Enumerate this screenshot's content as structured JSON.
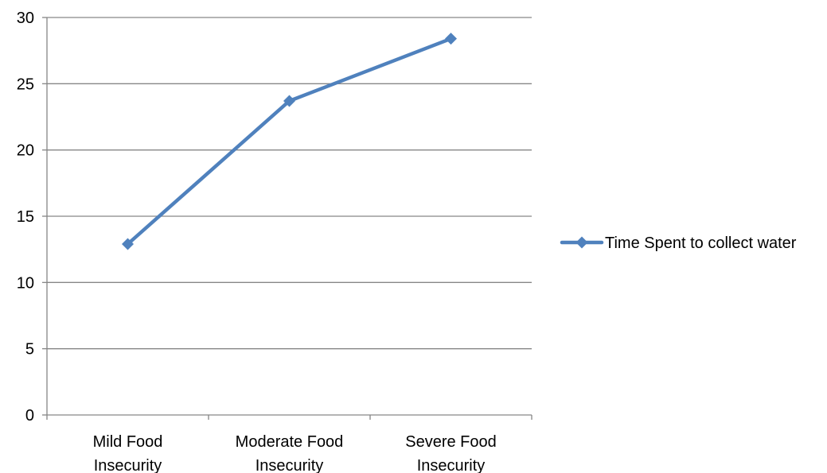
{
  "chart_data": {
    "type": "line",
    "title": "",
    "xlabel": "",
    "ylabel": "",
    "categories": [
      [
        "Mild Food",
        "Insecurity"
      ],
      [
        "Moderate Food",
        "Insecurity"
      ],
      [
        "Severe Food",
        "Insecurity"
      ]
    ],
    "series": [
      {
        "name": "Time Spent to collect water",
        "values": [
          12.9,
          23.7,
          28.4
        ]
      }
    ],
    "ylim": [
      0,
      30
    ],
    "yticks": [
      0,
      5,
      10,
      15,
      20,
      25,
      30
    ],
    "grid": true,
    "legend_position": "right",
    "colors": {
      "series": "#4F81BD",
      "grid": "#868686",
      "axis": "#868686"
    }
  }
}
